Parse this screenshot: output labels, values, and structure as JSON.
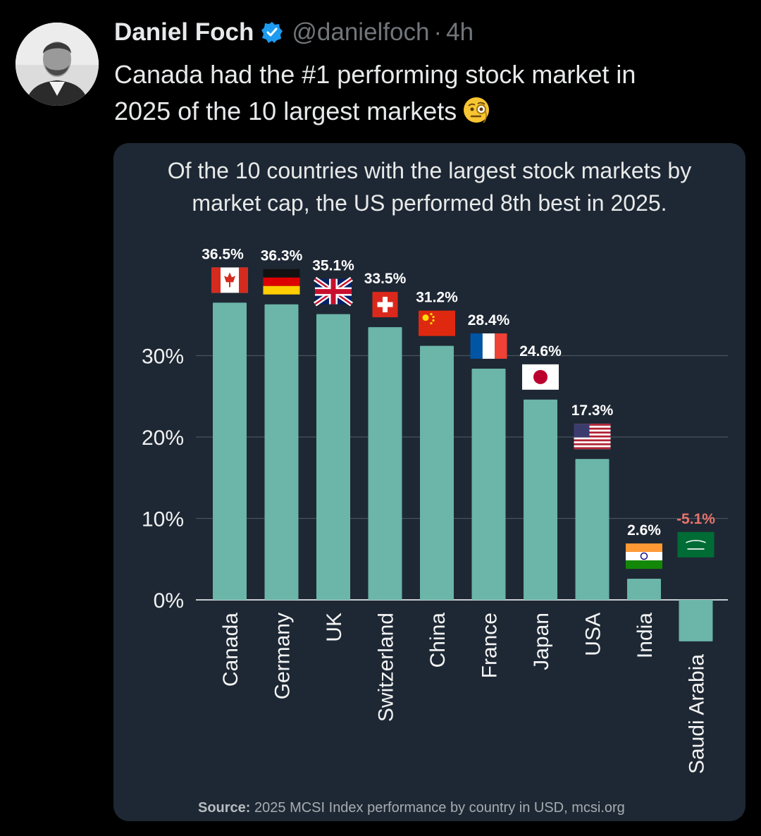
{
  "post": {
    "author_name": "Daniel Foch",
    "handle": "@danielfoch",
    "separator": "·",
    "time": "4h",
    "text_line1": "Canada had the #1 performing stock market in",
    "text_line2": "2025 of the 10 largest markets",
    "emoji": "monocle-face-emoji",
    "verified_icon": "verified-badge-icon"
  },
  "card": {
    "title_line1": "Of the 10 countries with the largest stock markets by",
    "title_line2": "market cap, the US performed 8th best in 2025.",
    "source_label": "Source:",
    "source_text": " 2025 MCSI Index performance by country in USD, mcsi.org"
  },
  "colors": {
    "bar": "#6bb5a9",
    "card_bg": "#1e2834",
    "negative_label": "#e8736c",
    "positive_label": "#ffffff",
    "grid": "#47525c"
  },
  "chart_data": {
    "type": "bar",
    "title": "Of the 10 countries with the largest stock markets by market cap, the US performed 8th best in 2025.",
    "categories": [
      "Canada",
      "Germany",
      "UK",
      "Switzerland",
      "China",
      "France",
      "Japan",
      "USA",
      "India",
      "Saudi Arabia"
    ],
    "values": [
      36.5,
      36.3,
      35.1,
      33.5,
      31.2,
      28.4,
      24.6,
      17.3,
      2.6,
      -5.1
    ],
    "value_labels": [
      "36.5%",
      "36.3%",
      "35.1%",
      "33.5%",
      "31.2%",
      "28.4%",
      "24.6%",
      "17.3%",
      "2.6%",
      "-5.1%"
    ],
    "flags": [
      "canada-flag-icon",
      "germany-flag-icon",
      "uk-flag-icon",
      "switzerland-flag-icon",
      "china-flag-icon",
      "france-flag-icon",
      "japan-flag-icon",
      "usa-flag-icon",
      "india-flag-icon",
      "saudi-arabia-flag-icon"
    ],
    "yticks": [
      0,
      10,
      20,
      30
    ],
    "ytick_labels": [
      "0%",
      "10%",
      "20%",
      "30%"
    ],
    "ylim": [
      -5.1,
      36.5
    ],
    "grid": true,
    "xlabel": "",
    "ylabel": ""
  }
}
